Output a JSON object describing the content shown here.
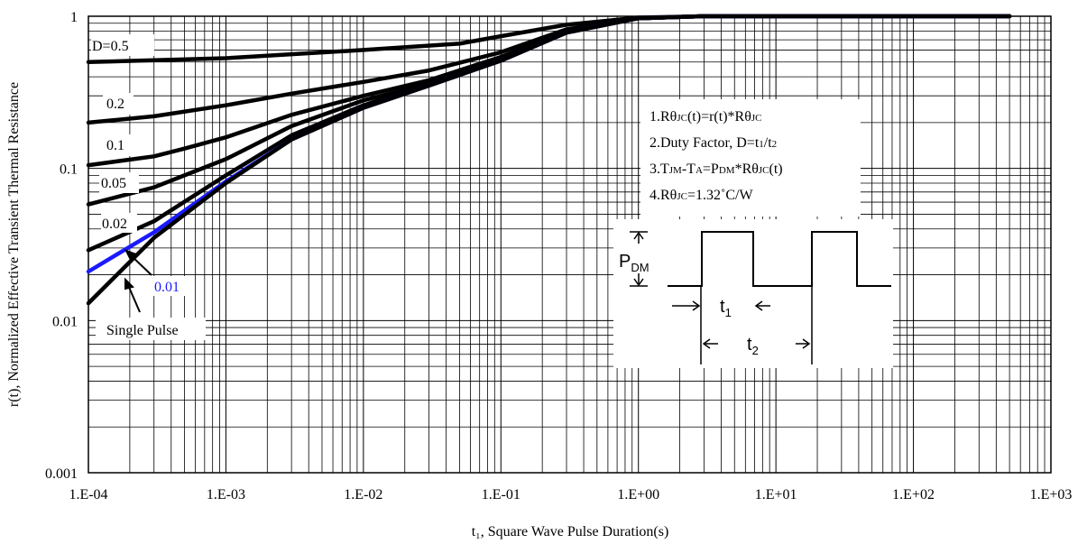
{
  "chart_data": {
    "type": "line",
    "title": "",
    "xlabel": "t₁, Square Wave Pulse Duration(s)",
    "ylabel": "r(t), Normalized Effective Transient Thermal Resistance",
    "xscale": "log",
    "yscale": "log",
    "xlim": [
      0.0001,
      1000
    ],
    "ylim": [
      0.001,
      1
    ],
    "grid": true,
    "x_tick_labels": [
      "1.E-04",
      "1.E-03",
      "1.E-02",
      "1.E-01",
      "1.E+00",
      "1.E+01",
      "1.E+02",
      "1.E+03"
    ],
    "y_tick_labels": [
      "0.001",
      "0.01",
      "0.1",
      "1"
    ],
    "series": [
      {
        "name": "D=0.5",
        "color": "#000000",
        "x": [
          0.0001,
          0.001,
          0.01,
          0.05,
          0.1,
          0.3,
          1,
          3,
          10,
          500
        ],
        "y": [
          0.5,
          0.53,
          0.6,
          0.66,
          0.74,
          0.88,
          0.98,
          1.0,
          1.0,
          1.0
        ]
      },
      {
        "name": "0.2",
        "color": "#000000",
        "x": [
          0.0001,
          0.0003,
          0.001,
          0.003,
          0.01,
          0.03,
          0.1,
          0.3,
          1,
          3,
          500
        ],
        "y": [
          0.2,
          0.22,
          0.26,
          0.31,
          0.37,
          0.44,
          0.58,
          0.82,
          0.97,
          1.0,
          1.0
        ]
      },
      {
        "name": "0.1",
        "color": "#000000",
        "x": [
          0.0001,
          0.0003,
          0.0005,
          0.001,
          0.003,
          0.01,
          0.03,
          0.1,
          0.3,
          1,
          3,
          500
        ],
        "y": [
          0.105,
          0.12,
          0.135,
          0.16,
          0.225,
          0.3,
          0.38,
          0.54,
          0.8,
          0.97,
          1.0,
          1.0
        ]
      },
      {
        "name": "0.05",
        "color": "#000000",
        "x": [
          0.0001,
          0.0003,
          0.0005,
          0.001,
          0.003,
          0.01,
          0.03,
          0.1,
          0.3,
          1,
          3,
          500
        ],
        "y": [
          0.058,
          0.075,
          0.09,
          0.115,
          0.19,
          0.28,
          0.36,
          0.52,
          0.79,
          0.97,
          1.0,
          1.0
        ]
      },
      {
        "name": "0.02",
        "color": "#000000",
        "x": [
          0.0001,
          0.0003,
          0.001,
          0.003,
          0.01,
          0.03,
          0.1,
          0.3,
          1,
          3,
          500
        ],
        "y": [
          0.029,
          0.045,
          0.09,
          0.165,
          0.26,
          0.36,
          0.52,
          0.79,
          0.97,
          1.0,
          1.0
        ]
      },
      {
        "name": "0.01",
        "color": "#1a1aff",
        "x": [
          0.0001,
          0.0003,
          0.001,
          0.003,
          0.01,
          0.03,
          0.1,
          0.3,
          1,
          3,
          500
        ],
        "y": [
          0.021,
          0.038,
          0.082,
          0.155,
          0.25,
          0.35,
          0.51,
          0.78,
          0.97,
          1.0,
          1.0
        ]
      },
      {
        "name": "Single Pulse",
        "color": "#000000",
        "x": [
          0.0001,
          0.0003,
          0.001,
          0.003,
          0.01,
          0.03,
          0.1,
          0.3,
          1,
          3,
          500
        ],
        "y": [
          0.013,
          0.035,
          0.08,
          0.155,
          0.25,
          0.35,
          0.51,
          0.78,
          0.97,
          1.0,
          1.0
        ]
      }
    ],
    "curve_labels": [
      "D=0.5",
      "0.2",
      "0.1",
      "0.05",
      "0.02",
      "0.01",
      "Single Pulse"
    ],
    "notes": {
      "line1": {
        "a": "1.R",
        "b": "θ",
        "c": "JC",
        "d": "(t)=r(t)*R",
        "e": "θ",
        "f": "JC"
      },
      "line2": {
        "a": "2.Duty Factor, D=t",
        "b": "1",
        "c": "/t",
        "d": "2"
      },
      "line3": {
        "a": "3.T",
        "b": "JM",
        "c": "-T",
        "d": "A",
        "e": "=P",
        "f": "DM",
        "g": "*R",
        "h": "θ",
        "i": "JC",
        "j": "(t)"
      },
      "line4": {
        "a": "4.R",
        "b": "θ",
        "c": "JC",
        "d": "=1.32˚C/W"
      }
    },
    "inset": {
      "p_label": "P",
      "p_sub": "DM",
      "t1_label": "t",
      "t1_sub": "1",
      "t2_label": "t",
      "t2_sub": "2"
    }
  }
}
